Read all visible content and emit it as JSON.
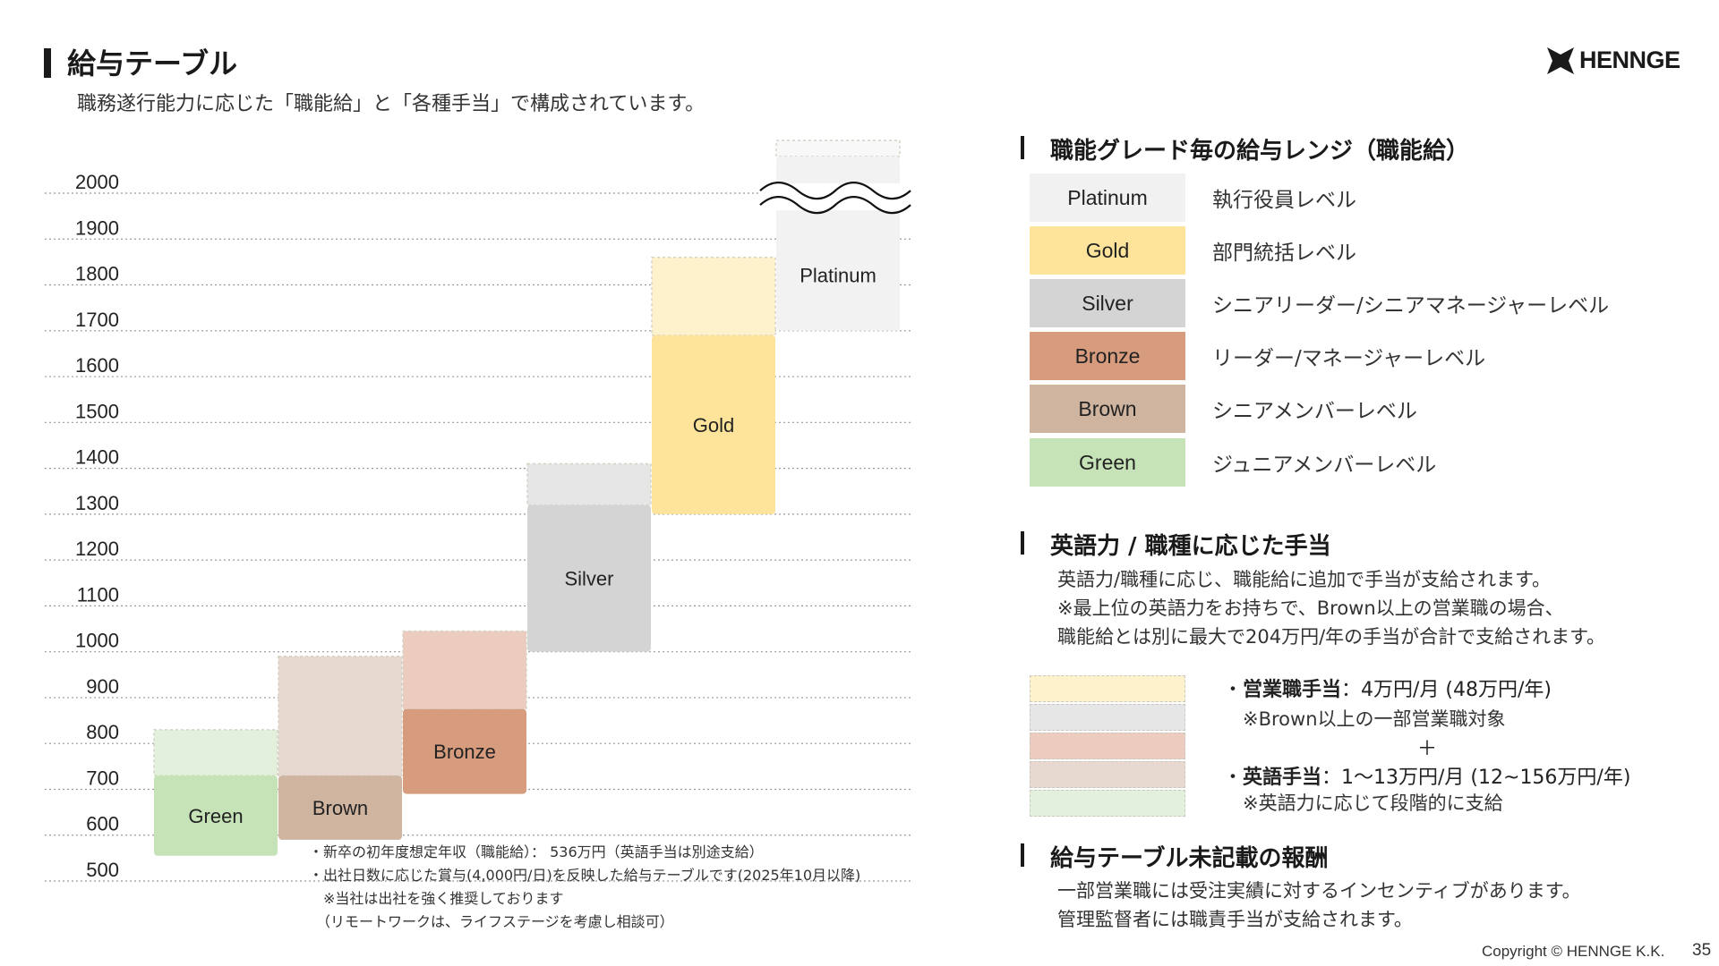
{
  "header": {
    "title": "給与テーブル",
    "subtitle": "職務遂行能力に応じた「職能給」と「各種手当」で構成されています。",
    "logo_text": "HENNGE"
  },
  "chart_data": {
    "type": "bar",
    "title": "",
    "xlabel": "",
    "ylabel": "",
    "ylim": [
      500,
      2000
    ],
    "y_ticks": [
      2000,
      1900,
      1800,
      1700,
      1600,
      1500,
      1400,
      1300,
      1200,
      1100,
      1000,
      900,
      800,
      700,
      600,
      500
    ],
    "grid": true,
    "categories": [
      "Green",
      "Brown",
      "Bronze",
      "Silver",
      "Gold",
      "Platinum"
    ],
    "series": [
      {
        "name": "職能給",
        "ranges": [
          [
            555,
            730
          ],
          [
            590,
            730
          ],
          [
            690,
            875
          ],
          [
            1000,
            1320
          ],
          [
            1300,
            1690
          ],
          [
            1700,
            2080
          ]
        ]
      },
      {
        "name": "手当",
        "ranges": [
          [
            730,
            830
          ],
          [
            730,
            990
          ],
          [
            875,
            1045
          ],
          [
            1320,
            1410
          ],
          [
            1690,
            1860
          ],
          [
            2080,
            2115
          ]
        ]
      }
    ],
    "base_colors": [
      "#c6e3b8",
      "#cfb4a0",
      "#d79b7e",
      "#d5d4d5",
      "#fde49a",
      "#f2f2f2"
    ],
    "allowance_colors": [
      "#e3f0dc",
      "#e7d9d0",
      "#ecccbe",
      "#e7e6e7",
      "#fef2cc",
      "#f8f8f8"
    ],
    "axis_break": true
  },
  "notes": [
    "・新卒の初年度想定年収（職能給）： 536万円（英語手当は別途支給）",
    "・出社日数に応じた賞与(4,000円/日)を反映した給与テーブルです(2025年10月以降)",
    "　※当社は出社を強く推奨しております",
    "　（リモートワークは、ライフステージを考慮し相談可）"
  ],
  "grades": {
    "title": "職能グレード毎の給与レンジ（職能給）",
    "items": [
      {
        "name": "Platinum",
        "desc": "執行役員レベル",
        "color": "#f1f1f1"
      },
      {
        "name": "Gold",
        "desc": "部門統括レベル",
        "color": "#fde49a"
      },
      {
        "name": "Silver",
        "desc": "シニアリーダー/シニアマネージャーレベル",
        "color": "#d5d4d5"
      },
      {
        "name": "Bronze",
        "desc": "リーダー/マネージャーレベル",
        "color": "#d79b7e"
      },
      {
        "name": "Brown",
        "desc": "シニアメンバーレベル",
        "color": "#cfb4a0"
      },
      {
        "name": "Green",
        "desc": "ジュニアメンバーレベル",
        "color": "#c6e3b8"
      }
    ]
  },
  "allowances": {
    "title": "英語力 / 職種に応じた手当",
    "lines": [
      "英語力/職種に応じ、職能給に追加で手当が支給されます。",
      "※最上位の英語力をお持ちで、Brown以上の営業職の場合、",
      "職能給とは別に最大で204万円/年の手当が合計で支給されます。"
    ],
    "sales_label": "営業職手当",
    "sales_value": "：4万円/月 (48万円/年)",
    "sales_note": "※Brown以上の一部営業職対象",
    "plus": "＋",
    "english_label": "英語手当",
    "english_value": "：1〜13万円/月 (12~156万円/年)",
    "english_note": "※英語力に応じて段階的に支給"
  },
  "other": {
    "title": "給与テーブル未記載の報酬",
    "lines": [
      "一部営業職には受注実績に対するインセンティブがあります。",
      "管理監督者には職責手当が支給されます。"
    ]
  },
  "footer": {
    "copyright": "Copyright © HENNGE K.K.",
    "page": "35"
  }
}
